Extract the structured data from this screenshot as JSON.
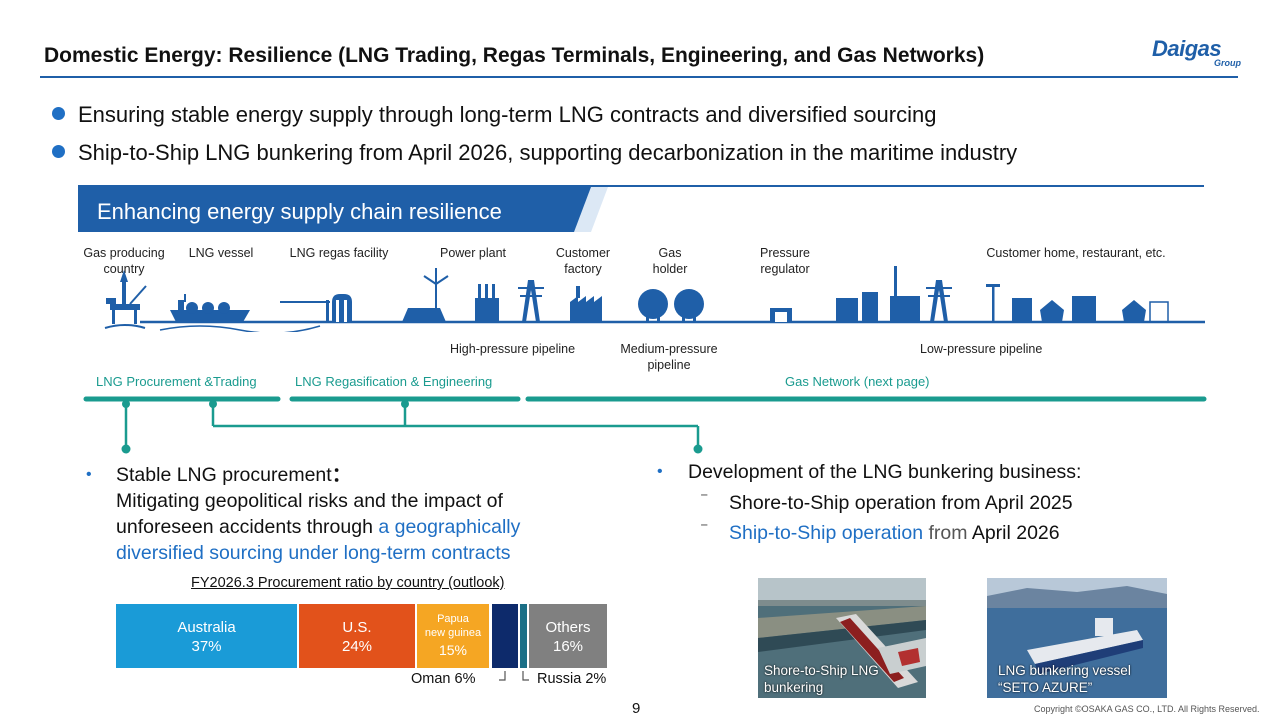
{
  "header": {
    "title": "Domestic Energy: Resilience (LNG Trading, Regas Terminals, Engineering, and Gas Networks)",
    "logo_main": "Daigas",
    "logo_sub": "Group"
  },
  "bullets": [
    "Ensuring stable energy supply through long-term LNG contracts and diversified sourcing",
    "Ship-to-Ship LNG bunkering from April 2026, supporting decarbonization in the maritime industry"
  ],
  "banner": {
    "text": "Enhancing energy supply chain resilience"
  },
  "chain": {
    "gas_producing_1": "Gas producing",
    "gas_producing_2": "country",
    "lng_vessel": "LNG vessel",
    "regas_facility": "LNG regas facility",
    "power_plant": "Power plant",
    "customer_factory_1": "Customer",
    "customer_factory_2": "factory",
    "gas_holder_1": "Gas",
    "gas_holder_2": "holder",
    "pressure_regulator_1": "Pressure",
    "pressure_regulator_2": "regulator",
    "customer_home": "Customer home, restaurant, etc."
  },
  "pipelines": {
    "high": "High-pressure pipeline",
    "medium_1": "Medium-pressure",
    "medium_2": "pipeline",
    "low": "Low-pressure pipeline"
  },
  "segments": {
    "procurement": "LNG Procurement &Trading",
    "regas": "LNG Regasification & Engineering",
    "network": "Gas Network (next page)"
  },
  "left_block": {
    "bullet": "•",
    "line1": "Stable LNG procurement",
    "line1_colon": "：",
    "line2": "Mitigating geopolitical risks and the impact of",
    "line3_a": "unforeseen accidents through ",
    "line3_b": "a geographically",
    "line4": "diversified sourcing under long-term contracts"
  },
  "right_block": {
    "bullet": "•",
    "line1": "Development of the LNG bunkering business:",
    "dash": "⁻",
    "sub1": "Shore-to-Ship operation from April 2025",
    "sub2_a": "Ship-to-Ship operation",
    "sub2_b": " from ",
    "sub2_c": "April 2026"
  },
  "procurement_chart": {
    "title": "FY2026.3 Procurement ratio by country (outlook)",
    "segments": [
      {
        "name": "Australia",
        "value": "37%",
        "color": "#1a9bd7"
      },
      {
        "name": "U.S.",
        "value": "24%",
        "color": "#e2521b"
      },
      {
        "name_1": "Papua",
        "name_2": "new guinea",
        "value": "15%",
        "color": "#f5a623"
      },
      {
        "name": "Oman",
        "value": "6%",
        "color": "#0d2a6b"
      },
      {
        "name": "Russia",
        "value": "2%",
        "color": "#1b6f86"
      },
      {
        "name": "Others",
        "value": "16%",
        "color": "#808080"
      }
    ],
    "oman_label": "Oman 6%",
    "russia_label": "Russia 2%"
  },
  "photos": [
    {
      "cap1": "Shore-to-Ship LNG",
      "cap2": "bunkering"
    },
    {
      "cap1": "LNG bunkering vessel",
      "cap2": "“SETO AZURE”"
    }
  ],
  "footer": {
    "page_number": "9",
    "copyright": "Copyright ©OSAKA GAS CO., LTD. All Rights Reserved."
  }
}
